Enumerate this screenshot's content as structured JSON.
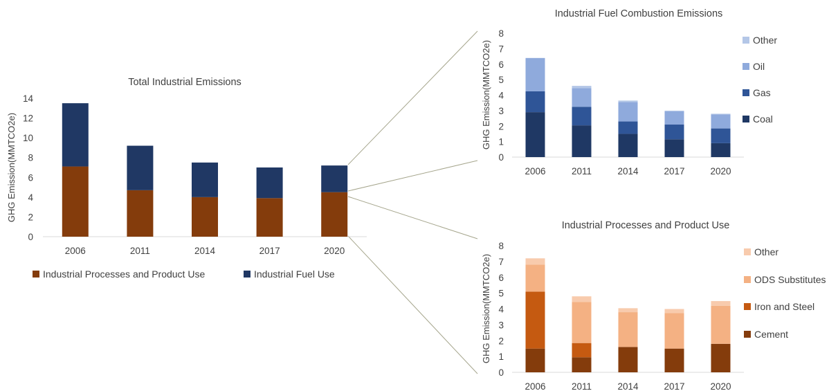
{
  "charts": {
    "total": {
      "title": "Total Industrial Emissions",
      "ylabel": "GHG Emission(MMTCO2e)",
      "yticks": [
        "0",
        "2",
        "4",
        "6",
        "8",
        "10",
        "12",
        "14"
      ],
      "categories": [
        "2006",
        "2011",
        "2014",
        "2017",
        "2020"
      ],
      "legend": [
        "Industrial Processes and Product Use",
        "Industrial Fuel Use"
      ]
    },
    "fuel": {
      "title": "Industrial Fuel Combustion Emissions",
      "ylabel": "GHG Emission(MMTCO2e)",
      "yticks": [
        "0",
        "1",
        "2",
        "3",
        "4",
        "5",
        "6",
        "7",
        "8"
      ],
      "categories": [
        "2006",
        "2011",
        "2014",
        "2017",
        "2020"
      ],
      "legend": [
        "Other",
        "Oil",
        "Gas",
        "Coal"
      ]
    },
    "process": {
      "title": "Industrial Processes and Product Use",
      "ylabel": "GHG Emission(MMTCO2e)",
      "yticks": [
        "0",
        "1",
        "2",
        "3",
        "4",
        "5",
        "6",
        "7",
        "8"
      ],
      "categories": [
        "2006",
        "2011",
        "2014",
        "2017",
        "2020"
      ],
      "legend": [
        "Other",
        "ODS Substitutes",
        "Iron and Steel",
        "Cement"
      ]
    }
  },
  "colors": {
    "industrial_processes": "#843c0c",
    "industrial_fuel": "#203864",
    "coal": "#1f3864",
    "gas": "#2f5597",
    "oil": "#8faadc",
    "fuel_other": "#b4c7e7",
    "cement": "#843c0c",
    "iron_steel": "#c55a11",
    "ods": "#f4b183",
    "process_other": "#f8cbad",
    "axis": "#d9d9d9",
    "connector": "#a5a58c"
  },
  "chart_data": [
    {
      "type": "bar",
      "stacked": true,
      "title": "Total Industrial Emissions",
      "ylabel": "GHG Emission(MMTCO2e)",
      "categories": [
        "2006",
        "2011",
        "2014",
        "2017",
        "2020"
      ],
      "ylim": [
        0,
        14
      ],
      "grid": false,
      "legend_position": "bottom",
      "series": [
        {
          "name": "Industrial Processes and Product Use",
          "values": [
            7.1,
            4.7,
            4.0,
            3.9,
            4.5
          ]
        },
        {
          "name": "Industrial Fuel Use",
          "values": [
            6.4,
            4.5,
            3.5,
            3.1,
            2.7
          ]
        }
      ]
    },
    {
      "type": "bar",
      "stacked": true,
      "title": "Industrial Fuel Combustion Emissions",
      "ylabel": "GHG Emission(MMTCO2e)",
      "categories": [
        "2006",
        "2011",
        "2014",
        "2017",
        "2020"
      ],
      "ylim": [
        0,
        8
      ],
      "grid": false,
      "legend_position": "right",
      "series": [
        {
          "name": "Coal",
          "values": [
            2.9,
            2.05,
            1.5,
            1.15,
            0.9
          ]
        },
        {
          "name": "Gas",
          "values": [
            1.35,
            1.2,
            0.8,
            0.95,
            0.95
          ]
        },
        {
          "name": "Oil",
          "values": [
            2.15,
            1.2,
            1.25,
            0.85,
            0.9
          ]
        },
        {
          "name": "Other",
          "values": [
            0.0,
            0.15,
            0.1,
            0.05,
            0.05
          ]
        }
      ]
    },
    {
      "type": "bar",
      "stacked": true,
      "title": "Industrial Processes and Product Use",
      "ylabel": "GHG Emission(MMTCO2e)",
      "categories": [
        "2006",
        "2011",
        "2014",
        "2017",
        "2020"
      ],
      "ylim": [
        0,
        8
      ],
      "grid": false,
      "legend_position": "right",
      "series": [
        {
          "name": "Cement",
          "values": [
            1.5,
            0.95,
            1.6,
            1.5,
            1.8
          ]
        },
        {
          "name": "Iron and Steel",
          "values": [
            3.6,
            0.9,
            0.0,
            0.0,
            0.0
          ]
        },
        {
          "name": "ODS Substitutes",
          "values": [
            1.7,
            2.6,
            2.2,
            2.25,
            2.4
          ]
        },
        {
          "name": "Other",
          "values": [
            0.4,
            0.35,
            0.25,
            0.25,
            0.3
          ]
        }
      ]
    }
  ]
}
